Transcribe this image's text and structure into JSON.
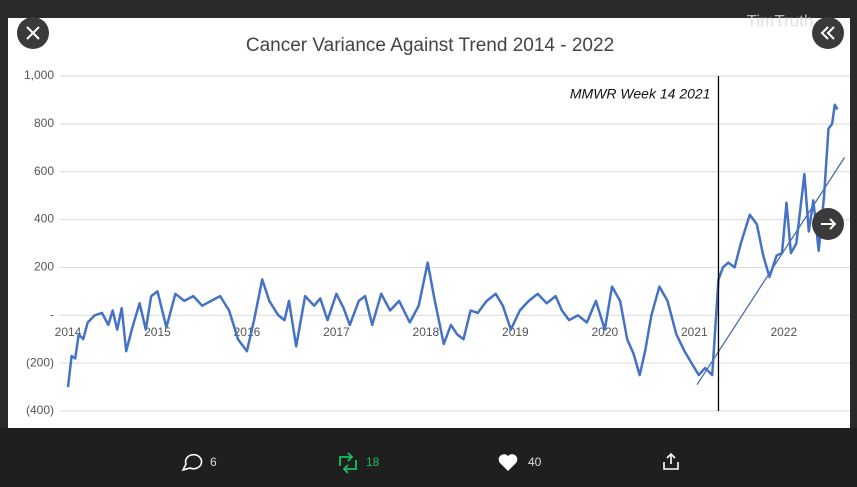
{
  "watermark": "TimTruth",
  "chart_data": {
    "type": "line",
    "title": "Cancer Variance Against Trend  2014 - 2022",
    "xlim": [
      2014,
      2022.74
    ],
    "xticks": [
      2014,
      2015,
      2016,
      2017,
      2018,
      2019,
      2020,
      2021,
      2022
    ],
    "ylim": [
      -400,
      1000
    ],
    "yticks": [
      {
        "value": 1000,
        "label": "1,000"
      },
      800,
      600,
      400,
      200,
      {
        "value": 0,
        "label": "-"
      },
      {
        "value": -200,
        "label": "(200)"
      },
      {
        "value": -400,
        "label": "(400)"
      }
    ],
    "grid": true,
    "series": [
      {
        "color": "#4472c4",
        "x": [
          2014.0,
          2014.04,
          2014.08,
          2014.12,
          2014.17,
          2014.22,
          2014.3,
          2014.38,
          2014.45,
          2014.5,
          2014.55,
          2014.6,
          2014.65,
          2014.72,
          2014.8,
          2014.87,
          2014.93,
          2015.0,
          2015.1,
          2015.2,
          2015.3,
          2015.4,
          2015.5,
          2015.6,
          2015.7,
          2015.8,
          2015.9,
          2016.0,
          2016.08,
          2016.17,
          2016.25,
          2016.35,
          2016.42,
          2016.47,
          2016.55,
          2016.65,
          2016.75,
          2016.82,
          2016.9,
          2017.0,
          2017.08,
          2017.15,
          2017.25,
          2017.32,
          2017.4,
          2017.5,
          2017.6,
          2017.7,
          2017.82,
          2017.92,
          2018.02,
          2018.1,
          2018.2,
          2018.28,
          2018.35,
          2018.42,
          2018.5,
          2018.58,
          2018.68,
          2018.78,
          2018.86,
          2018.95,
          2019.05,
          2019.15,
          2019.25,
          2019.35,
          2019.45,
          2019.52,
          2019.6,
          2019.7,
          2019.8,
          2019.9,
          2020.0,
          2020.08,
          2020.17,
          2020.25,
          2020.32,
          2020.39,
          2020.45,
          2020.52,
          2020.61,
          2020.7,
          2020.8,
          2020.89,
          2020.97,
          2021.05,
          2021.12,
          2021.2,
          2021.27,
          2021.32,
          2021.38,
          2021.45,
          2021.52,
          2021.62,
          2021.7,
          2021.77,
          2021.84,
          2021.92,
          2021.98,
          2022.03,
          2022.08,
          2022.14,
          2022.23,
          2022.28,
          2022.33,
          2022.39,
          2022.45,
          2022.5,
          2022.54,
          2022.57,
          2022.6
        ],
        "values": [
          -300,
          -170,
          -180,
          -80,
          -100,
          -30,
          0,
          10,
          -40,
          20,
          -60,
          30,
          -150,
          -50,
          50,
          -60,
          80,
          100,
          -50,
          90,
          60,
          80,
          40,
          60,
          80,
          20,
          -100,
          -150,
          -20,
          150,
          60,
          0,
          -20,
          60,
          -130,
          80,
          40,
          70,
          -20,
          90,
          30,
          -40,
          60,
          80,
          -40,
          90,
          20,
          60,
          -30,
          40,
          220,
          60,
          -120,
          -40,
          -80,
          -100,
          20,
          10,
          60,
          90,
          40,
          -60,
          20,
          60,
          90,
          50,
          80,
          20,
          -20,
          0,
          -30,
          60,
          -60,
          120,
          60,
          -100,
          -160,
          -250,
          -150,
          0,
          120,
          60,
          -80,
          -150,
          -200,
          -250,
          -220,
          -250,
          150,
          200,
          220,
          200,
          300,
          420,
          380,
          250,
          160,
          250,
          260,
          470,
          260,
          300,
          590,
          350,
          480,
          270,
          500,
          780,
          800,
          880,
          860
        ]
      }
    ],
    "trend_line": {
      "color": "#4a6fa8",
      "x": [
        2021.03,
        2022.68
      ],
      "values": [
        -290,
        660
      ]
    },
    "annotations": [
      {
        "text": "MMWR Week 14 2021",
        "x": 2021.27
      }
    ]
  },
  "actions": {
    "replies": 6,
    "retweets": 18,
    "likes": 40
  }
}
